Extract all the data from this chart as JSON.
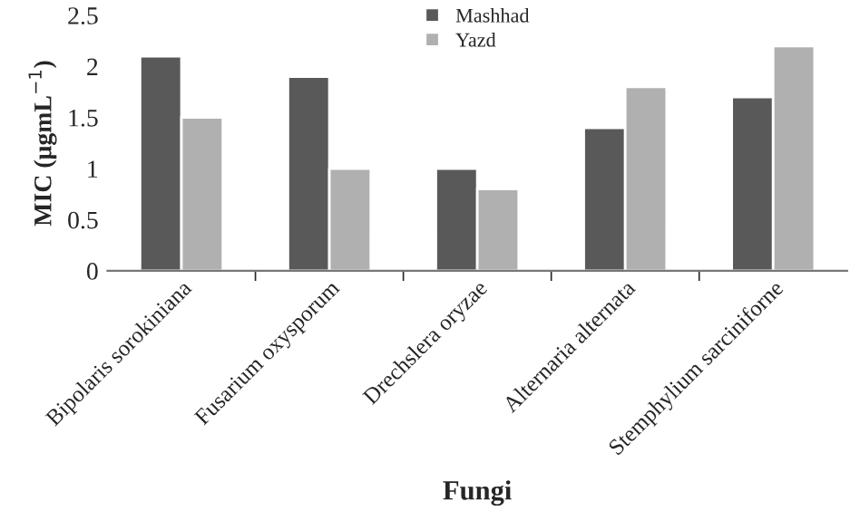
{
  "chart_data": {
    "type": "bar",
    "xlabel": "Fungi",
    "ylabel": "MIC (μgmL$^{−1}$)",
    "categories": [
      "Bipolaris sorokiniana",
      "Fusarium oxysporum",
      "Drechslera oryzae",
      "Alternaria alternata",
      "Stemphylium sarciniforne"
    ],
    "series": [
      {
        "name": "Mashhad",
        "color": "#595959",
        "values": [
          2.1,
          1.9,
          1.0,
          1.4,
          1.7
        ]
      },
      {
        "name": "Yazd",
        "color": "#b0b0b0",
        "values": [
          1.5,
          1.0,
          0.8,
          1.8,
          2.2
        ]
      }
    ],
    "ylim": [
      0,
      2.5
    ],
    "yticks": [
      0,
      0.5,
      1,
      1.5,
      2,
      2.5
    ],
    "legend": "top",
    "grid": false
  }
}
